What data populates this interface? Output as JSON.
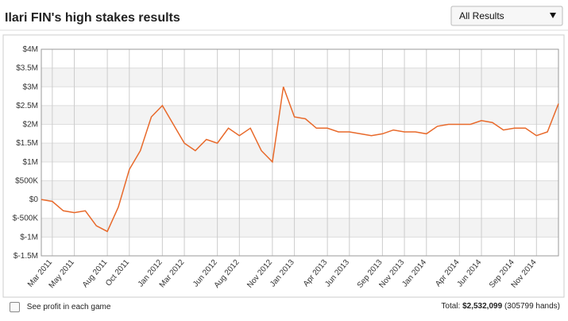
{
  "header": {
    "title": "Ilari FIN's high stakes results",
    "dropdown": "All Results"
  },
  "chart_data": {
    "type": "line",
    "x": [
      "2011-02",
      "2011-03",
      "2011-04",
      "2011-05",
      "2011-06",
      "2011-07",
      "2011-08",
      "2011-09",
      "2011-10",
      "2011-11",
      "2011-12",
      "2012-01",
      "2012-02",
      "2012-03",
      "2012-04",
      "2012-05",
      "2012-06",
      "2012-07",
      "2012-08",
      "2012-09",
      "2012-10",
      "2012-11",
      "2012-12",
      "2013-01",
      "2013-02",
      "2013-03",
      "2013-04",
      "2013-05",
      "2013-06",
      "2013-07",
      "2013-08",
      "2013-09",
      "2013-10",
      "2013-11",
      "2013-12",
      "2014-01",
      "2014-02",
      "2014-03",
      "2014-04",
      "2014-05",
      "2014-06",
      "2014-07",
      "2014-08",
      "2014-09",
      "2014-10",
      "2014-11",
      "2014-12",
      "2015-01"
    ],
    "series": [
      {
        "color": "#e8692a",
        "values": [
          0,
          -50000,
          -300000,
          -350000,
          -300000,
          -700000,
          -850000,
          -200000,
          800000,
          1300000,
          2200000,
          2500000,
          2000000,
          1500000,
          1300000,
          1600000,
          1500000,
          1900000,
          1700000,
          1900000,
          1300000,
          1000000,
          3000000,
          2200000,
          2150000,
          1900000,
          1900000,
          1800000,
          1800000,
          1750000,
          1700000,
          1750000,
          1850000,
          1800000,
          1800000,
          1750000,
          1950000,
          2000000,
          2000000,
          2000000,
          2100000,
          2050000,
          1850000,
          1900000,
          1900000,
          1700000,
          1800000,
          2550000
        ]
      }
    ],
    "xlim": [
      "2011-02",
      "2015-01"
    ],
    "xticks": [
      {
        "value": "2011-03",
        "label": "Mar 2011"
      },
      {
        "value": "2011-05",
        "label": "May 2011"
      },
      {
        "value": "2011-08",
        "label": "Aug 2011"
      },
      {
        "value": "2011-10",
        "label": "Oct 2011"
      },
      {
        "value": "2012-01",
        "label": "Jan 2012"
      },
      {
        "value": "2012-03",
        "label": "Mar 2012"
      },
      {
        "value": "2012-06",
        "label": "Jun 2012"
      },
      {
        "value": "2012-08",
        "label": "Aug 2012"
      },
      {
        "value": "2012-11",
        "label": "Nov 2012"
      },
      {
        "value": "2013-01",
        "label": "Jan 2013"
      },
      {
        "value": "2013-04",
        "label": "Apr 2013"
      },
      {
        "value": "2013-06",
        "label": "Jun 2013"
      },
      {
        "value": "2013-09",
        "label": "Sep 2013"
      },
      {
        "value": "2013-11",
        "label": "Nov 2013"
      },
      {
        "value": "2014-01",
        "label": "Jan 2014"
      },
      {
        "value": "2014-04",
        "label": "Apr 2014"
      },
      {
        "value": "2014-06",
        "label": "Jun 2014"
      },
      {
        "value": "2014-09",
        "label": "Sep 2014"
      },
      {
        "value": "2014-11",
        "label": "Nov 2014"
      }
    ],
    "ylim": [
      -1500000,
      4000000
    ],
    "yticks": [
      {
        "value": -1500000,
        "label": "$-1.5M"
      },
      {
        "value": -1000000,
        "label": "$-1M"
      },
      {
        "value": -500000,
        "label": "$-500K"
      },
      {
        "value": 0,
        "label": "$0"
      },
      {
        "value": 500000,
        "label": "$500K"
      },
      {
        "value": 1000000,
        "label": "$1M"
      },
      {
        "value": 1500000,
        "label": "$1.5M"
      },
      {
        "value": 2000000,
        "label": "$2M"
      },
      {
        "value": 2500000,
        "label": "$2.5M"
      },
      {
        "value": 3000000,
        "label": "$3M"
      },
      {
        "value": 3500000,
        "label": "$3.5M"
      },
      {
        "value": 4000000,
        "label": "$4M"
      }
    ],
    "grid": true
  },
  "footer": {
    "checkbox": "See profit in each game",
    "total_label": "Total:",
    "total_value": "$2,532,099",
    "hands": "(305799 hands)"
  }
}
